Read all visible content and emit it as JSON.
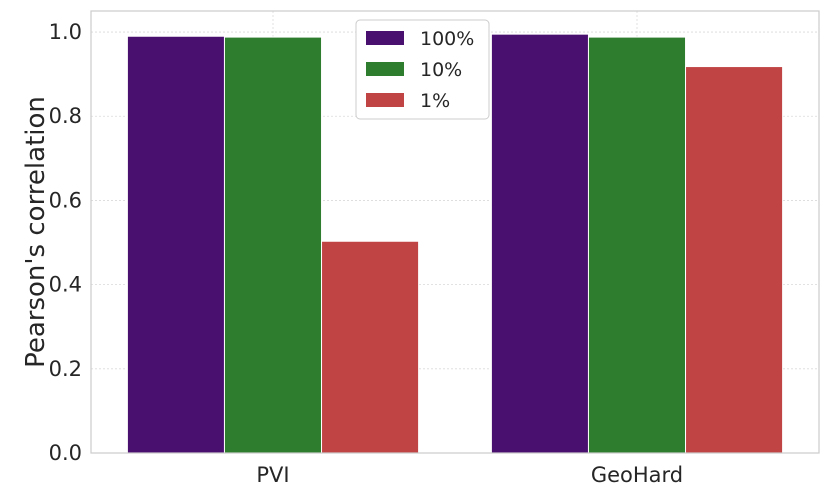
{
  "chart_data": {
    "type": "bar",
    "title": "",
    "xlabel": "",
    "ylabel": "Pearson's correlation",
    "categories": [
      "PVI",
      "GeoHard"
    ],
    "series": [
      {
        "name": "100%",
        "color": "#4a1070",
        "values": [
          0.99,
          0.995
        ]
      },
      {
        "name": "10%",
        "color": "#2e7d2e",
        "values": [
          0.988,
          0.988
        ]
      },
      {
        "name": "1%",
        "color": "#c04444",
        "values": [
          0.503,
          0.918
        ]
      }
    ],
    "ylim": [
      0,
      1.05
    ],
    "yticks": [
      "0.0",
      "0.2",
      "0.4",
      "0.6",
      "0.8",
      "1.0"
    ],
    "grid": true,
    "legend_position": "top-center"
  }
}
